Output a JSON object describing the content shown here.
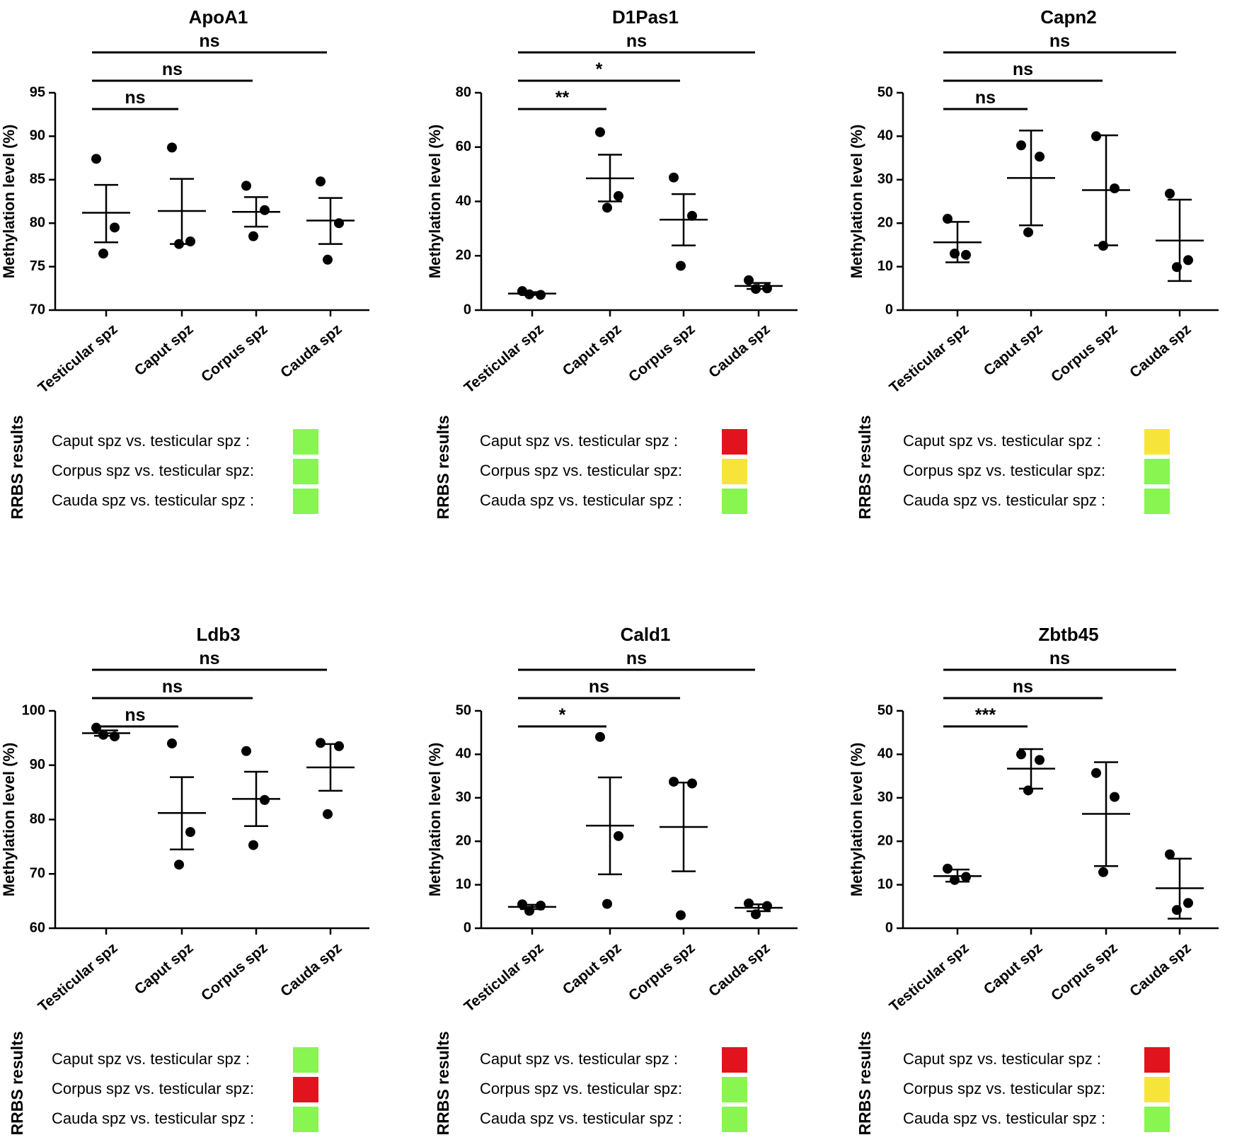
{
  "chart_data": [
    {
      "type": "scatter",
      "title": "ApoA1",
      "ylabel": "Methylation level (%)",
      "ylim": [
        70,
        95
      ],
      "yticks": [
        70,
        75,
        80,
        85,
        90,
        95
      ],
      "categories": [
        "Testicular spz",
        "Caput spz",
        "Corpus spz",
        "Cauda spz"
      ],
      "points": [
        [
          87.4,
          79.5,
          76.5
        ],
        [
          88.7,
          77.9,
          77.6
        ],
        [
          84.3,
          81.5,
          78.5
        ],
        [
          84.8,
          80.0,
          75.8
        ]
      ],
      "means": [
        81.2,
        81.4,
        81.3,
        80.3
      ],
      "errors": [
        [
          77.8,
          84.4
        ],
        [
          77.6,
          85.1
        ],
        [
          79.6,
          83.0
        ],
        [
          77.6,
          82.9
        ]
      ],
      "significance": [
        {
          "from": 0,
          "to": 1,
          "label": "ns"
        },
        {
          "from": 0,
          "to": 2,
          "label": "ns"
        },
        {
          "from": 0,
          "to": 3,
          "label": "ns"
        }
      ],
      "rrbs": {
        "title": "RRBS results",
        "rows": [
          {
            "label": "Caput spz vs. testicular spz :",
            "color": "#88f550"
          },
          {
            "label": "Corpus spz vs. testicular spz:",
            "color": "#88f550"
          },
          {
            "label": "Cauda spz vs. testicular spz :",
            "color": "#88f550"
          }
        ]
      }
    },
    {
      "type": "scatter",
      "title": "D1Pas1",
      "ylabel": "Methylation level (%)",
      "ylim": [
        0,
        80
      ],
      "yticks": [
        0,
        20,
        40,
        60,
        80
      ],
      "categories": [
        "Testicular spz",
        "Caput spz",
        "Corpus spz",
        "Cauda spz"
      ],
      "points": [
        [
          7.0,
          5.6,
          5.8
        ],
        [
          65.5,
          42.0,
          37.7
        ],
        [
          48.8,
          34.7,
          16.3
        ],
        [
          11.0,
          8.0,
          7.8
        ]
      ],
      "means": [
        6.1,
        48.5,
        33.3,
        8.9
      ],
      "errors": [
        [
          5.6,
          6.6
        ],
        [
          40.0,
          57.2
        ],
        [
          23.8,
          42.7
        ],
        [
          7.8,
          10.0
        ]
      ],
      "significance": [
        {
          "from": 0,
          "to": 1,
          "label": "**"
        },
        {
          "from": 0,
          "to": 2,
          "label": "*"
        },
        {
          "from": 0,
          "to": 3,
          "label": "ns"
        }
      ],
      "rrbs": {
        "title": "RRBS results",
        "rows": [
          {
            "label": "Caput spz vs. testicular spz :",
            "color": "#e1141e"
          },
          {
            "label": "Corpus spz vs. testicular spz:",
            "color": "#f7e43a"
          },
          {
            "label": "Cauda spz vs. testicular spz :",
            "color": "#88f550"
          }
        ]
      }
    },
    {
      "type": "scatter",
      "title": "Capn2",
      "ylabel": "Methylation level (%)",
      "ylim": [
        0,
        50
      ],
      "yticks": [
        0,
        10,
        20,
        30,
        40,
        50
      ],
      "categories": [
        "Testicular spz",
        "Caput spz",
        "Corpus spz",
        "Cauda spz"
      ],
      "points": [
        [
          21.0,
          12.7,
          13.0
        ],
        [
          37.9,
          35.3,
          17.9
        ],
        [
          40.0,
          28.0,
          14.8
        ],
        [
          26.8,
          11.5,
          9.9
        ]
      ],
      "means": [
        15.6,
        30.4,
        27.6,
        16.0
      ],
      "errors": [
        [
          11.0,
          20.3
        ],
        [
          19.5,
          41.3
        ],
        [
          14.9,
          40.2
        ],
        [
          6.7,
          25.4
        ]
      ],
      "significance": [
        {
          "from": 0,
          "to": 1,
          "label": "ns"
        },
        {
          "from": 0,
          "to": 2,
          "label": "ns"
        },
        {
          "from": 0,
          "to": 3,
          "label": "ns"
        }
      ],
      "rrbs": {
        "title": "RRBS results",
        "rows": [
          {
            "label": "Caput spz vs. testicular spz :",
            "color": "#f7e43a"
          },
          {
            "label": "Corpus spz vs. testicular spz:",
            "color": "#88f550"
          },
          {
            "label": "Cauda spz vs. testicular spz :",
            "color": "#88f550"
          }
        ]
      }
    },
    {
      "type": "scatter",
      "title": "Ldb3",
      "ylabel": "Methylation level (%)",
      "ylim": [
        60,
        100
      ],
      "yticks": [
        60,
        70,
        80,
        90,
        100
      ],
      "categories": [
        "Testicular spz",
        "Caput spz",
        "Corpus spz",
        "Cauda spz"
      ],
      "points": [
        [
          96.9,
          95.3,
          95.6
        ],
        [
          94.0,
          77.7,
          71.7
        ],
        [
          92.6,
          83.6,
          75.3
        ],
        [
          94.1,
          93.5,
          81.0
        ]
      ],
      "means": [
        95.9,
        81.2,
        83.8,
        89.6
      ],
      "errors": [
        [
          95.4,
          96.4
        ],
        [
          74.5,
          87.8
        ],
        [
          78.8,
          88.8
        ],
        [
          85.3,
          93.9
        ]
      ],
      "significance": [
        {
          "from": 0,
          "to": 1,
          "label": "ns"
        },
        {
          "from": 0,
          "to": 2,
          "label": "ns"
        },
        {
          "from": 0,
          "to": 3,
          "label": "ns"
        }
      ],
      "rrbs": {
        "title": "RRBS results",
        "rows": [
          {
            "label": "Caput spz vs. testicular spz :",
            "color": "#88f550"
          },
          {
            "label": "Corpus spz vs. testicular spz:",
            "color": "#e1141e"
          },
          {
            "label": "Cauda spz vs. testicular spz :",
            "color": "#88f550"
          }
        ]
      }
    },
    {
      "type": "scatter",
      "title": "Cald1",
      "ylabel": "Methylation level (%)",
      "ylim": [
        0,
        50
      ],
      "yticks": [
        0,
        10,
        20,
        30,
        40,
        50
      ],
      "categories": [
        "Testicular spz",
        "Caput spz",
        "Corpus spz",
        "Cauda spz"
      ],
      "points": [
        [
          5.5,
          5.2,
          4.0
        ],
        [
          44.0,
          21.2,
          5.6
        ],
        [
          33.7,
          33.3,
          3.0
        ],
        [
          5.7,
          5.1,
          3.2
        ]
      ],
      "means": [
        4.9,
        23.6,
        23.3,
        4.7
      ],
      "errors": [
        [
          4.4,
          5.4
        ],
        [
          12.4,
          34.7
        ],
        [
          13.1,
          33.5
        ],
        [
          3.9,
          5.5
        ]
      ],
      "significance": [
        {
          "from": 0,
          "to": 1,
          "label": "*"
        },
        {
          "from": 0,
          "to": 2,
          "label": "ns"
        },
        {
          "from": 0,
          "to": 3,
          "label": "ns"
        }
      ],
      "rrbs": {
        "title": "RRBS results",
        "rows": [
          {
            "label": "Caput spz vs. testicular spz :",
            "color": "#e1141e"
          },
          {
            "label": "Corpus spz vs. testicular spz:",
            "color": "#88f550"
          },
          {
            "label": "Cauda spz vs. testicular spz :",
            "color": "#88f550"
          }
        ]
      }
    },
    {
      "type": "scatter",
      "title": "Zbtb45",
      "ylabel": "Methylation level (%)",
      "ylim": [
        0,
        50
      ],
      "yticks": [
        0,
        10,
        20,
        30,
        40,
        50
      ],
      "categories": [
        "Testicular spz",
        "Caput spz",
        "Corpus spz",
        "Cauda spz"
      ],
      "points": [
        [
          13.7,
          11.8,
          11.1
        ],
        [
          40.0,
          38.7,
          31.7
        ],
        [
          35.7,
          30.2,
          12.9
        ],
        [
          17.0,
          5.8,
          4.2
        ]
      ],
      "means": [
        12.0,
        36.7,
        26.3,
        9.2
      ],
      "errors": [
        [
          10.7,
          13.5
        ],
        [
          32.1,
          41.2
        ],
        [
          14.3,
          38.2
        ],
        [
          2.2,
          16.0
        ]
      ],
      "significance": [
        {
          "from": 0,
          "to": 1,
          "label": "***"
        },
        {
          "from": 0,
          "to": 2,
          "label": "ns"
        },
        {
          "from": 0,
          "to": 3,
          "label": "ns"
        }
      ],
      "rrbs": {
        "title": "RRBS results",
        "rows": [
          {
            "label": "Caput spz vs. testicular spz :",
            "color": "#e1141e"
          },
          {
            "label": "Corpus spz vs. testicular spz:",
            "color": "#f7e43a"
          },
          {
            "label": "Cauda spz vs. testicular spz :",
            "color": "#88f550"
          }
        ]
      }
    }
  ]
}
